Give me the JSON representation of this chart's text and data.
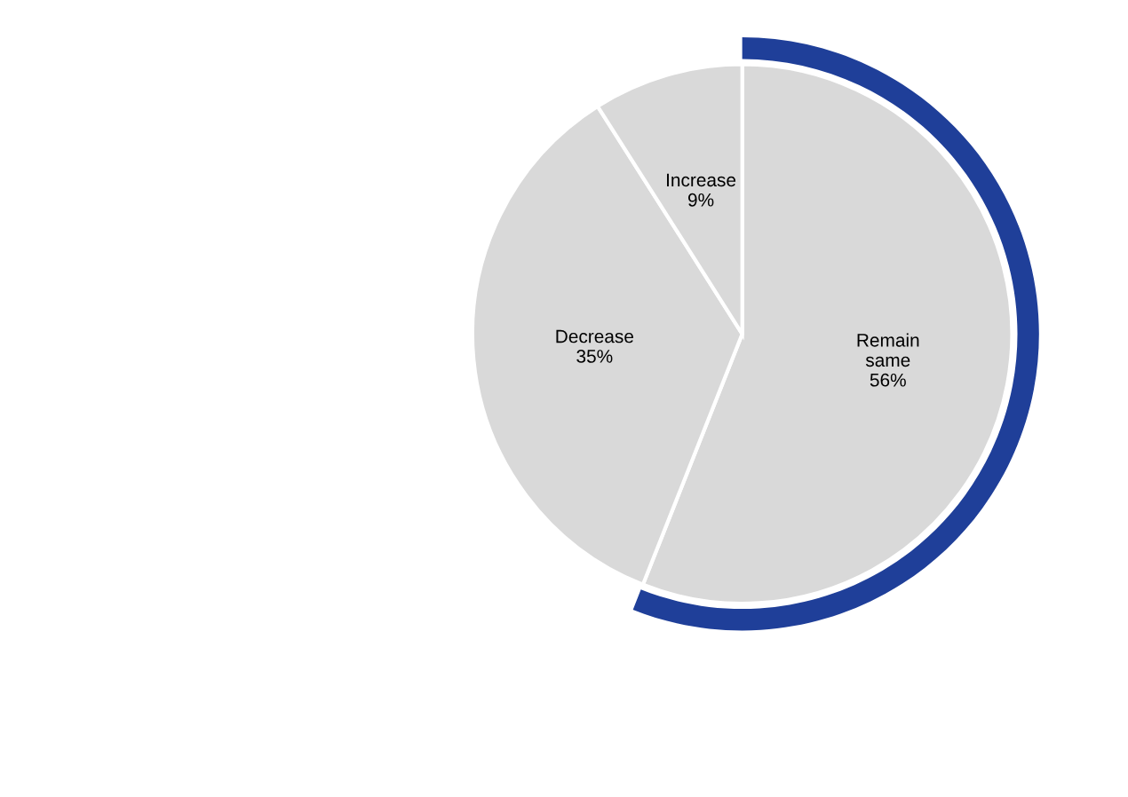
{
  "chart_data": {
    "type": "pie",
    "categories": [
      "Remain same",
      "Decrease",
      "Increase"
    ],
    "values": [
      56,
      35,
      9
    ],
    "colors": [
      "#d9d9d9",
      "#d9d9d9",
      "#d9d9d9"
    ],
    "value_labels": [
      "56%",
      "35%",
      "9%"
    ]
  }
}
